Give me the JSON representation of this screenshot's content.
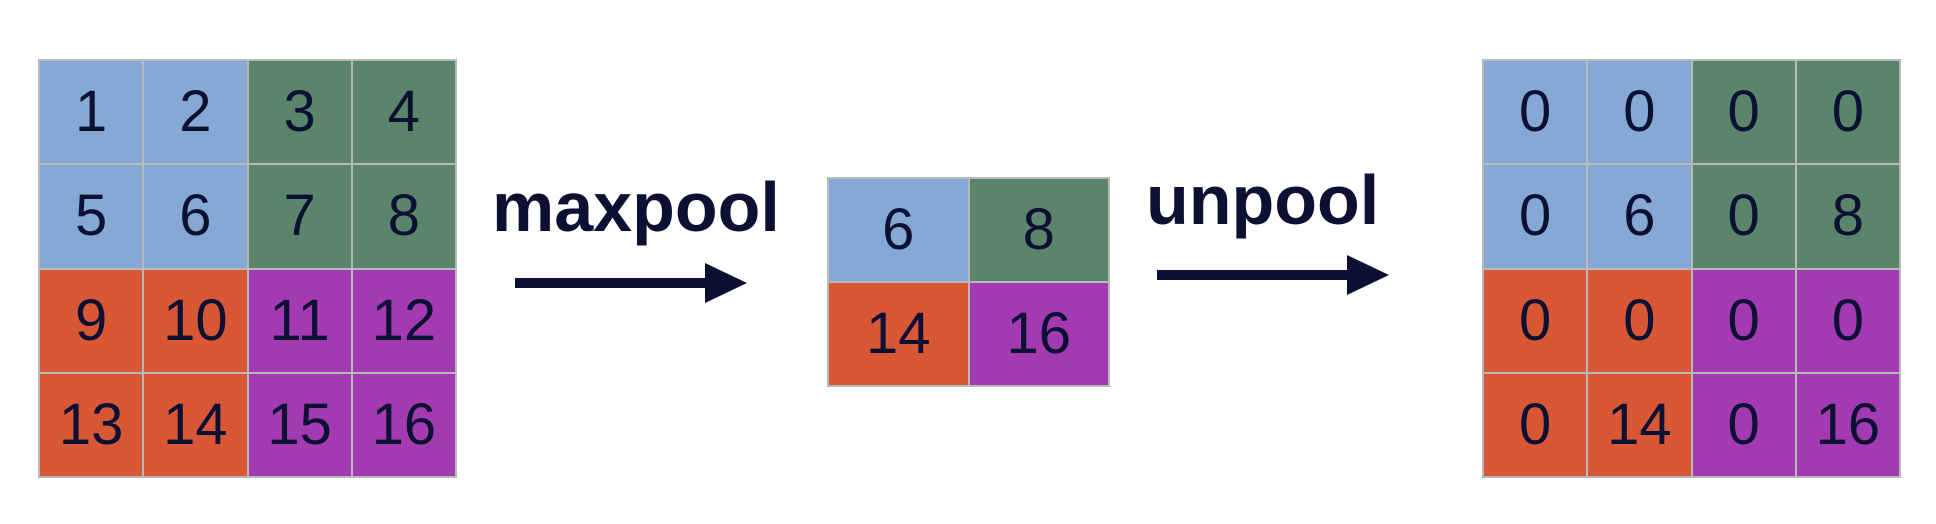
{
  "input_grid": {
    "cells": [
      {
        "value": "1",
        "color": "#85a9d4"
      },
      {
        "value": "2",
        "color": "#85a9d4"
      },
      {
        "value": "3",
        "color": "#5a856b"
      },
      {
        "value": "4",
        "color": "#5a856b"
      },
      {
        "value": "5",
        "color": "#85a9d4"
      },
      {
        "value": "6",
        "color": "#85a9d4"
      },
      {
        "value": "7",
        "color": "#5a856b"
      },
      {
        "value": "8",
        "color": "#5a856b"
      },
      {
        "value": "9",
        "color": "#d85735"
      },
      {
        "value": "10",
        "color": "#d85735"
      },
      {
        "value": "11",
        "color": "#a33ab2"
      },
      {
        "value": "12",
        "color": "#a33ab2"
      },
      {
        "value": "13",
        "color": "#d85735"
      },
      {
        "value": "14",
        "color": "#d85735"
      },
      {
        "value": "15",
        "color": "#a33ab2"
      },
      {
        "value": "16",
        "color": "#a33ab2"
      }
    ]
  },
  "maxpool_step": {
    "label": "maxpool",
    "arrow_icon": "right-arrow-icon"
  },
  "pooled_grid": {
    "cells": [
      {
        "value": "6",
        "color": "#85a9d4"
      },
      {
        "value": "8",
        "color": "#5a856b"
      },
      {
        "value": "14",
        "color": "#d85735"
      },
      {
        "value": "16",
        "color": "#a33ab2"
      }
    ]
  },
  "unpool_step": {
    "label": "unpool",
    "arrow_icon": "right-arrow-icon"
  },
  "output_grid": {
    "cells": [
      {
        "value": "0",
        "color": "#85a9d4"
      },
      {
        "value": "0",
        "color": "#85a9d4"
      },
      {
        "value": "0",
        "color": "#5a856b"
      },
      {
        "value": "0",
        "color": "#5a856b"
      },
      {
        "value": "0",
        "color": "#85a9d4"
      },
      {
        "value": "6",
        "color": "#85a9d4"
      },
      {
        "value": "0",
        "color": "#5a856b"
      },
      {
        "value": "8",
        "color": "#5a856b"
      },
      {
        "value": "0",
        "color": "#d85735"
      },
      {
        "value": "0",
        "color": "#d85735"
      },
      {
        "value": "0",
        "color": "#a33ab2"
      },
      {
        "value": "0",
        "color": "#a33ab2"
      },
      {
        "value": "0",
        "color": "#d85735"
      },
      {
        "value": "14",
        "color": "#d85735"
      },
      {
        "value": "0",
        "color": "#a33ab2"
      },
      {
        "value": "16",
        "color": "#a33ab2"
      }
    ]
  },
  "colors": {
    "text": "#0c1033",
    "grid_line": "#b9b9b9",
    "arrow": "#0c1033"
  }
}
